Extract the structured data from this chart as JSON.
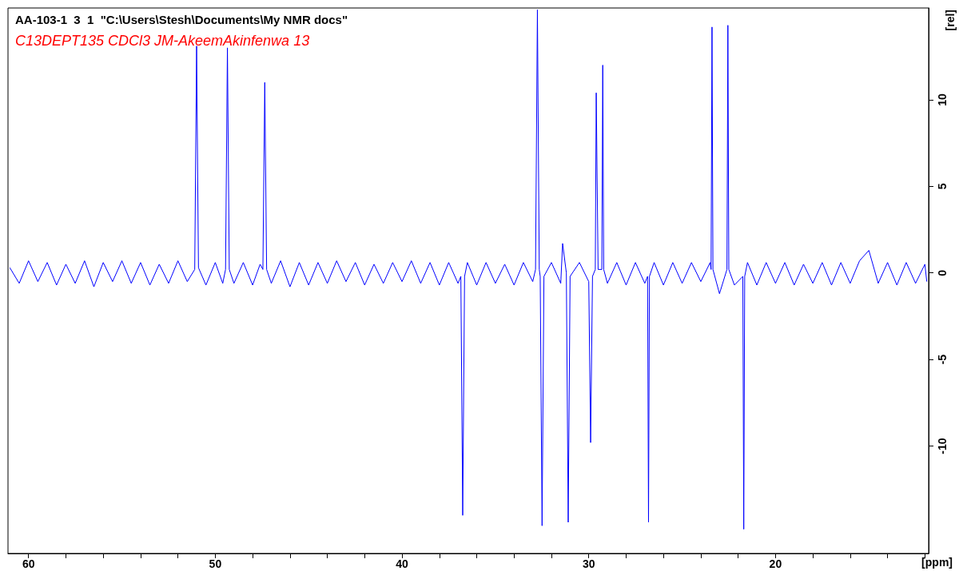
{
  "chart_data": {
    "type": "line",
    "title": "AA-103-1  3  1  \"C:\\Users\\Stesh\\Documents\\My NMR docs\"",
    "subtitle": "C13DEPT135 CDCl3 JM-AkeemAkinfenwa 13",
    "xlabel": "[ppm]",
    "ylabel": "[rel]",
    "xlim": [
      61.1,
      11.8
    ],
    "xticks": [
      60,
      {
        "value": 58,
        "label": null
      },
      {
        "value": 56,
        "label": null
      },
      {
        "value": 54,
        "label": null
      },
      {
        "value": 52,
        "label": null
      },
      50,
      {
        "value": 48,
        "label": null
      },
      {
        "value": 46,
        "label": null
      },
      {
        "value": 44,
        "label": null
      },
      {
        "value": 42,
        "label": null
      },
      40,
      {
        "value": 38,
        "label": null
      },
      {
        "value": 36,
        "label": null
      },
      {
        "value": 34,
        "label": null
      },
      {
        "value": 32,
        "label": null
      },
      30,
      {
        "value": 28,
        "label": null
      },
      {
        "value": 26,
        "label": null
      },
      {
        "value": 24,
        "label": null
      },
      {
        "value": 22,
        "label": null
      },
      20,
      {
        "value": 18,
        "label": null
      },
      {
        "value": 16,
        "label": null
      },
      {
        "value": 14,
        "label": null
      },
      {
        "value": 12,
        "label": null
      }
    ],
    "ylim": [
      -16.2,
      15.3
    ],
    "yticks": [
      -10,
      -5,
      0,
      5,
      10
    ],
    "marker": "none",
    "line_style": "solid",
    "series": [
      {
        "color": "#0000ff",
        "x": [
          61.0,
          60.5,
          60.0,
          59.5,
          59.0,
          58.5,
          58.0,
          57.5,
          57.0,
          56.5,
          56.0,
          55.5,
          55.0,
          54.5,
          54.0,
          53.5,
          53.0,
          52.5,
          52.0,
          51.5,
          51.1,
          51.0,
          50.9,
          50.5,
          50.0,
          49.6,
          49.45,
          49.35,
          49.25,
          49.0,
          48.5,
          48.0,
          47.6,
          47.45,
          47.35,
          47.25,
          47.0,
          46.5,
          46.0,
          45.5,
          45.0,
          44.5,
          44.0,
          43.5,
          43.0,
          42.5,
          42.0,
          41.5,
          41.0,
          40.5,
          40.0,
          39.5,
          39.0,
          38.5,
          38.0,
          37.5,
          37.0,
          36.85,
          36.75,
          36.65,
          36.5,
          36.0,
          35.5,
          35.0,
          34.5,
          34.0,
          33.5,
          33.0,
          32.85,
          32.75,
          32.65,
          32.6,
          32.5,
          32.4,
          32.0,
          31.5,
          31.4,
          31.2,
          31.1,
          31.0,
          30.5,
          30.0,
          29.9,
          29.8,
          29.65,
          29.6,
          29.5,
          29.3,
          29.25,
          29.2,
          29.0,
          28.5,
          28.0,
          27.5,
          27.0,
          26.85,
          26.8,
          26.75,
          26.5,
          26.0,
          25.5,
          25.0,
          24.5,
          24.0,
          23.5,
          23.45,
          23.4,
          23.35,
          23.0,
          22.6,
          22.55,
          22.5,
          22.2,
          21.75,
          21.7,
          21.65,
          21.5,
          21.0,
          20.5,
          20.0,
          19.5,
          19.0,
          18.5,
          18.0,
          17.5,
          17.0,
          16.5,
          16.0,
          15.5,
          15.0,
          14.5,
          14.0,
          13.5,
          13.0,
          12.5,
          12.0,
          11.9
        ],
        "values": [
          0.3,
          -0.6,
          0.7,
          -0.5,
          0.6,
          -0.7,
          0.5,
          -0.6,
          0.7,
          -0.8,
          0.6,
          -0.5,
          0.7,
          -0.6,
          0.6,
          -0.7,
          0.5,
          -0.6,
          0.7,
          -0.5,
          0.2,
          13.1,
          0.3,
          -0.7,
          0.6,
          -0.6,
          0.2,
          13.0,
          0.2,
          -0.6,
          0.6,
          -0.7,
          0.5,
          0.2,
          11.0,
          0.2,
          -0.6,
          0.7,
          -0.8,
          0.6,
          -0.7,
          0.6,
          -0.6,
          0.7,
          -0.5,
          0.6,
          -0.7,
          0.5,
          -0.6,
          0.6,
          -0.5,
          0.7,
          -0.6,
          0.6,
          -0.7,
          0.6,
          -0.6,
          -0.2,
          -14.0,
          -0.2,
          0.6,
          -0.7,
          0.6,
          -0.6,
          0.5,
          -0.7,
          0.6,
          -0.5,
          0.2,
          15.2,
          0.2,
          -0.2,
          -14.6,
          -0.2,
          0.6,
          -0.6,
          1.7,
          0.0,
          -14.4,
          -0.2,
          0.6,
          -0.5,
          -9.8,
          -0.2,
          0.2,
          10.4,
          0.2,
          0.2,
          12.0,
          0.2,
          -0.6,
          0.6,
          -0.7,
          0.6,
          -0.6,
          -0.2,
          -14.4,
          -0.2,
          0.6,
          -0.7,
          0.6,
          -0.6,
          0.6,
          -0.5,
          0.6,
          0.2,
          14.2,
          0.2,
          -1.2,
          0.2,
          14.3,
          0.2,
          -0.7,
          -0.2,
          -14.8,
          -0.2,
          0.6,
          -0.7,
          0.6,
          -0.6,
          0.6,
          -0.7,
          0.5,
          -0.6,
          0.6,
          -0.7,
          0.6,
          -0.6,
          0.7,
          1.3,
          -0.6,
          0.6,
          -0.7,
          0.6,
          -0.6,
          0.5,
          -0.5
        ]
      }
    ]
  }
}
